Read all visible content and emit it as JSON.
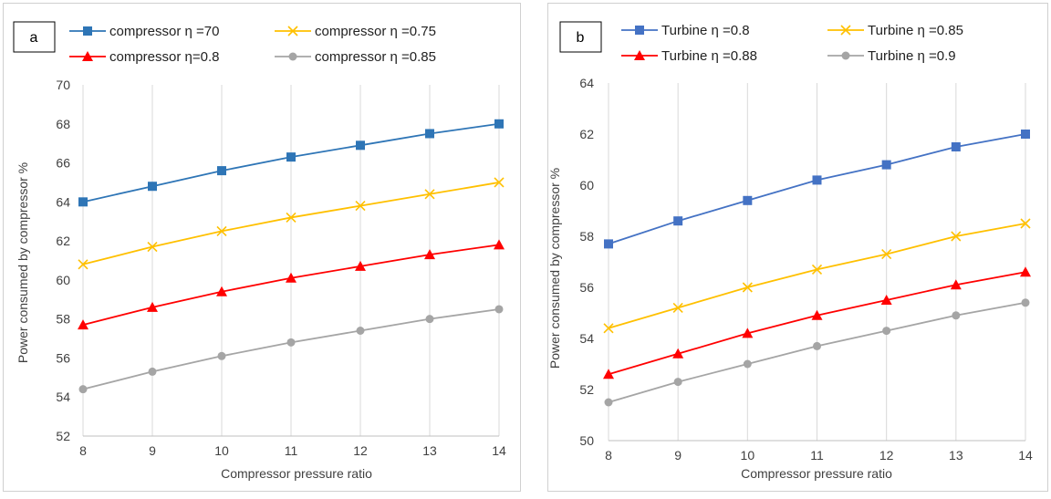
{
  "chart_data": [
    {
      "panel_tag": "a",
      "type": "line",
      "xlabel": "Compressor pressure ratio",
      "ylabel": "Power consumed by compressor %",
      "x": [
        8,
        9,
        10,
        11,
        12,
        13,
        14
      ],
      "xlim": [
        8,
        14
      ],
      "ylim": [
        52,
        70
      ],
      "y_ticks": [
        52,
        54,
        56,
        58,
        60,
        62,
        64,
        66,
        68,
        70
      ],
      "grid": "vertical",
      "legend_position": "top",
      "series": [
        {
          "name": "compressor η =70",
          "color": "#2e75b6",
          "marker": "square",
          "values": [
            64.0,
            64.8,
            65.6,
            66.3,
            66.9,
            67.5,
            68.0
          ]
        },
        {
          "name": "compressor η =0.75",
          "color": "#ffc000",
          "marker": "x",
          "values": [
            60.8,
            61.7,
            62.5,
            63.2,
            63.8,
            64.4,
            65.0
          ]
        },
        {
          "name": "compressor η=0.8",
          "color": "#ff0000",
          "marker": "triangle",
          "values": [
            57.7,
            58.6,
            59.4,
            60.1,
            60.7,
            61.3,
            61.8
          ]
        },
        {
          "name": "compressor η =0.85",
          "color": "#a5a5a5",
          "marker": "circle",
          "values": [
            54.4,
            55.3,
            56.1,
            56.8,
            57.4,
            58.0,
            58.5
          ]
        }
      ]
    },
    {
      "panel_tag": "b",
      "type": "line",
      "xlabel": "Compressor pressure ratio",
      "ylabel": "Power consumed by compressor %",
      "x": [
        8,
        9,
        10,
        11,
        12,
        13,
        14
      ],
      "xlim": [
        8,
        14
      ],
      "ylim": [
        50,
        64
      ],
      "y_ticks": [
        50,
        52,
        54,
        56,
        58,
        60,
        62,
        64
      ],
      "grid": "vertical",
      "legend_position": "top",
      "series": [
        {
          "name": "Turbine η =0.8",
          "color": "#4472c4",
          "marker": "square",
          "values": [
            57.7,
            58.6,
            59.4,
            60.2,
            60.8,
            61.5,
            62.0
          ]
        },
        {
          "name": "Turbine η =0.85",
          "color": "#ffc000",
          "marker": "x",
          "values": [
            54.4,
            55.2,
            56.0,
            56.7,
            57.3,
            58.0,
            58.5
          ]
        },
        {
          "name": "Turbine η =0.88",
          "color": "#ff0000",
          "marker": "triangle",
          "values": [
            52.6,
            53.4,
            54.2,
            54.9,
            55.5,
            56.1,
            56.6
          ]
        },
        {
          "name": "Turbine η =0.9",
          "color": "#a5a5a5",
          "marker": "circle",
          "values": [
            51.5,
            52.3,
            53.0,
            53.7,
            54.3,
            54.9,
            55.4
          ]
        }
      ]
    }
  ]
}
